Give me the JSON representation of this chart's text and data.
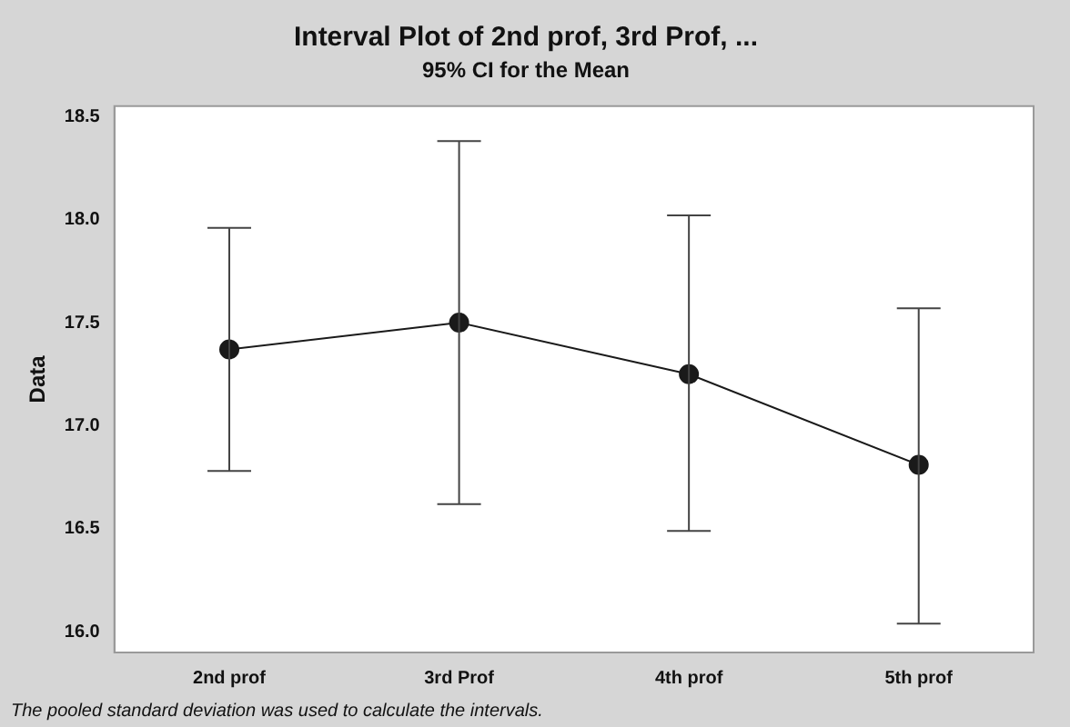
{
  "chart_data": {
    "type": "line",
    "title": "Interval Plot of 2nd prof, 3rd Prof, ...",
    "subtitle": "95% CI for the Mean",
    "ylabel": "Data",
    "categories": [
      "2nd prof",
      "3rd Prof",
      "4th prof",
      "5th prof"
    ],
    "series": [
      {
        "color": "#1a1a1a",
        "values": [
          17.37,
          17.5,
          17.25,
          16.81
        ],
        "errors": [
          [
            16.78,
            17.96
          ],
          [
            16.62,
            18.38
          ],
          [
            16.49,
            18.02
          ],
          [
            16.04,
            17.57
          ]
        ]
      }
    ],
    "ylim": [
      15.9,
      18.55
    ],
    "yticks": [
      {
        "value": 16,
        "label": "16.0"
      },
      16.5,
      {
        "value": 17,
        "label": "17.0"
      },
      17.5,
      {
        "value": 18,
        "label": "18.0"
      },
      18.5
    ],
    "grid": false,
    "legend": false,
    "marker": "circle",
    "line_style": "solid",
    "annotations": [
      "The pooled standard deviation was used to calculate the intervals."
    ]
  }
}
